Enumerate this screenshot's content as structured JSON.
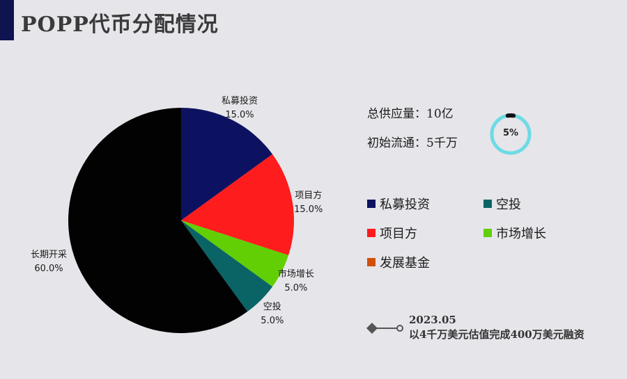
{
  "header": {
    "title": "POPP代币分配情况"
  },
  "chart_data": {
    "type": "pie",
    "slices": [
      {
        "name": "私募投资",
        "value": 15.0,
        "label": "15.0%",
        "color": "#0d1260"
      },
      {
        "name": "项目方",
        "value": 15.0,
        "label": "15.0%",
        "color": "#ff1c1c"
      },
      {
        "name": "市场增长",
        "value": 5.0,
        "label": "5.0%",
        "color": "#62cf05"
      },
      {
        "name": "空投",
        "value": 5.0,
        "label": "5.0%",
        "color": "#0a6466"
      },
      {
        "name": "长期开采",
        "value": 60.0,
        "label": "60.0%",
        "color": "#020202"
      }
    ]
  },
  "stats": {
    "total_supply": "总供应量：10亿",
    "initial_circulation": "初始流通：5千万",
    "ring_value": 0.05,
    "ring_label": "5%",
    "ring_color": "#6cdbe4"
  },
  "legend": [
    {
      "name": "私募投资",
      "color": "#0d1260"
    },
    {
      "name": "空投",
      "color": "#0a6466"
    },
    {
      "name": "项目方",
      "color": "#ff1c1c"
    },
    {
      "name": "市场增长",
      "color": "#62cf05"
    },
    {
      "name": "发展基金",
      "color": "#d15008"
    }
  ],
  "timeline": {
    "date": "2023.05",
    "event": "以4千万美元估值完成400万美元融资"
  }
}
